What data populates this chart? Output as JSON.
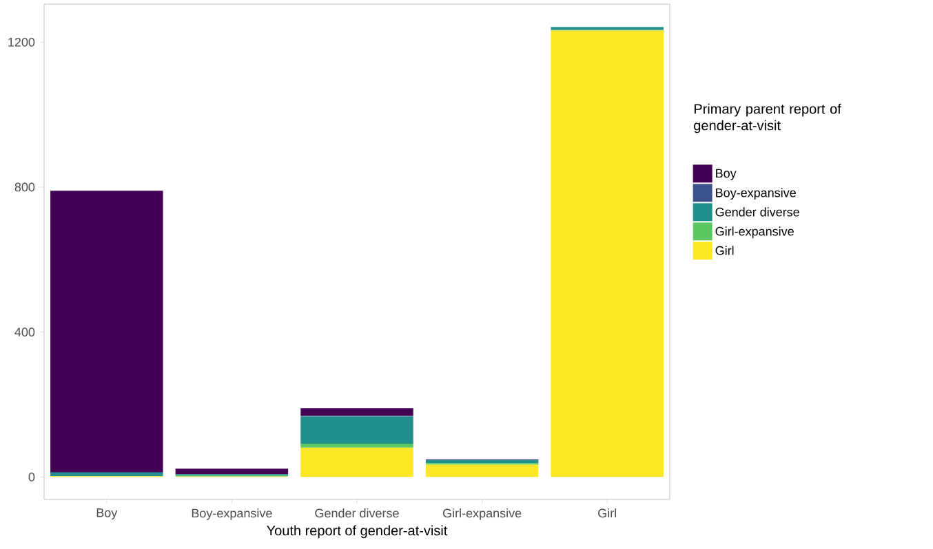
{
  "chart_data": {
    "type": "bar",
    "stacked": true,
    "xlabel": "Youth report of gender-at-visit",
    "legend_title": "Primary parent report of gender-at-visit",
    "legend": "right",
    "categories": [
      "Boy",
      "Boy-expansive",
      "Gender diverse",
      "Girl-expansive",
      "Girl"
    ],
    "ylim": [
      -62,
      1305
    ],
    "yticks": [
      0,
      400,
      800,
      1200
    ],
    "series": [
      {
        "name": "Girl",
        "color": "#fde725",
        "values": [
          2,
          1,
          81,
          34,
          1232
        ]
      },
      {
        "name": "Girl-expansive",
        "color": "#5dc863",
        "values": [
          0,
          3,
          11,
          4,
          2
        ]
      },
      {
        "name": "Gender diverse",
        "color": "#21908c",
        "values": [
          10,
          4,
          75,
          9,
          8
        ]
      },
      {
        "name": "Boy-expansive",
        "color": "#3b528b",
        "values": [
          2,
          null,
          2,
          1,
          null
        ]
      },
      {
        "name": "Boy",
        "color": "#440154",
        "values": [
          776,
          15,
          21,
          1,
          0
        ]
      }
    ]
  }
}
